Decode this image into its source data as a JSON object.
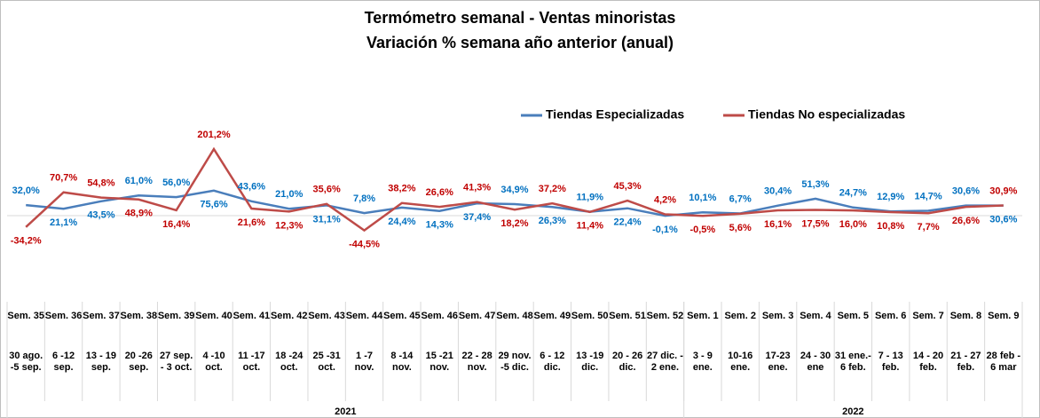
{
  "chart_data": {
    "type": "line",
    "title": "Termómetro semanal - Ventas minoristas",
    "subtitle": "Variación % semana año anterior (anual)",
    "categories": [
      "Sem. 35",
      "Sem. 36",
      "Sem. 37",
      "Sem. 38",
      "Sem. 39",
      "Sem. 40",
      "Sem. 41",
      "Sem. 42",
      "Sem. 43",
      "Sem. 44",
      "Sem. 45",
      "Sem. 46",
      "Sem. 47",
      "Sem. 48",
      "Sem. 49",
      "Sem. 50",
      "Sem. 51",
      "Sem. 52",
      "Sem. 1",
      "Sem. 2",
      "Sem. 3",
      "Sem. 4",
      "Sem. 5",
      "Sem. 6",
      "Sem. 7",
      "Sem. 8",
      "Sem. 9"
    ],
    "date_ranges": [
      "30 ago. -5 sep.",
      "6 -12 sep.",
      "13 - 19 sep.",
      "20 -26 sep.",
      "27 sep. - 3 oct.",
      "4 -10 oct.",
      "11 -17 oct.",
      "18 -24 oct.",
      "25 -31 oct.",
      "1 -7 nov.",
      "8 -14 nov.",
      "15 -21 nov.",
      "22 - 28 nov.",
      "29 nov. -5 dic.",
      "6 - 12 dic.",
      "13 -19 dic.",
      "20 - 26 dic.",
      "27 dic. - 2 ene.",
      "3 - 9 ene.",
      "10-16 ene.",
      "17-23 ene.",
      "24 - 30 ene",
      "31 ene.- 6 feb.",
      "7 - 13 feb.",
      "14 - 20 feb.",
      "21 - 27 feb.",
      "28 feb - 6 mar"
    ],
    "year_groups": [
      {
        "label": "2021",
        "span": 18
      },
      {
        "label": "2022",
        "span": 9
      }
    ],
    "series": [
      {
        "name": "Tiendas Especializadas",
        "color": "#4a7ebb",
        "label_color": "#0070c0",
        "values": [
          32.0,
          21.1,
          43.5,
          61.0,
          56.0,
          75.6,
          43.6,
          21.0,
          31.1,
          7.8,
          24.4,
          14.3,
          37.4,
          34.9,
          26.3,
          11.9,
          22.4,
          -0.1,
          10.1,
          6.7,
          30.4,
          51.3,
          24.7,
          12.9,
          14.7,
          30.6,
          30.6
        ],
        "value_labels": [
          "32,0%",
          "21,1%",
          "43,5%",
          "61,0%",
          "56,0%",
          "75,6%",
          "43,6%",
          "21,0%",
          "31,1%",
          "7,8%",
          "24,4%",
          "14,3%",
          "37,4%",
          "34,9%",
          "26,3%",
          "11,9%",
          "22,4%",
          "-0,1%",
          "10,1%",
          "6,7%",
          "30,4%",
          "51,3%",
          "24,7%",
          "12,9%",
          "14,7%",
          "30,6%",
          "30,6%"
        ]
      },
      {
        "name": "Tiendas No especializadas",
        "color": "#be4b48",
        "label_color": "#c00000",
        "values": [
          -34.2,
          70.7,
          54.8,
          48.9,
          16.4,
          201.2,
          21.6,
          12.3,
          35.6,
          -44.5,
          38.2,
          26.6,
          41.3,
          18.2,
          37.2,
          11.4,
          45.3,
          4.2,
          -0.5,
          5.6,
          16.1,
          17.5,
          16.0,
          10.8,
          7.7,
          26.6,
          30.9
        ],
        "value_labels": [
          "-34,2%",
          "70,7%",
          "54,8%",
          "48,9%",
          "16,4%",
          "201,2%",
          "21,6%",
          "12,3%",
          "35,6%",
          "-44,5%",
          "38,2%",
          "26,6%",
          "41,3%",
          "18,2%",
          "37,2%",
          "11,4%",
          "45,3%",
          "4,2%",
          "-0,5%",
          "5,6%",
          "16,1%",
          "17,5%",
          "16,0%",
          "10,8%",
          "7,7%",
          "26,6%",
          "30,9%"
        ]
      }
    ],
    "ylim": [
      -60,
      220
    ]
  }
}
